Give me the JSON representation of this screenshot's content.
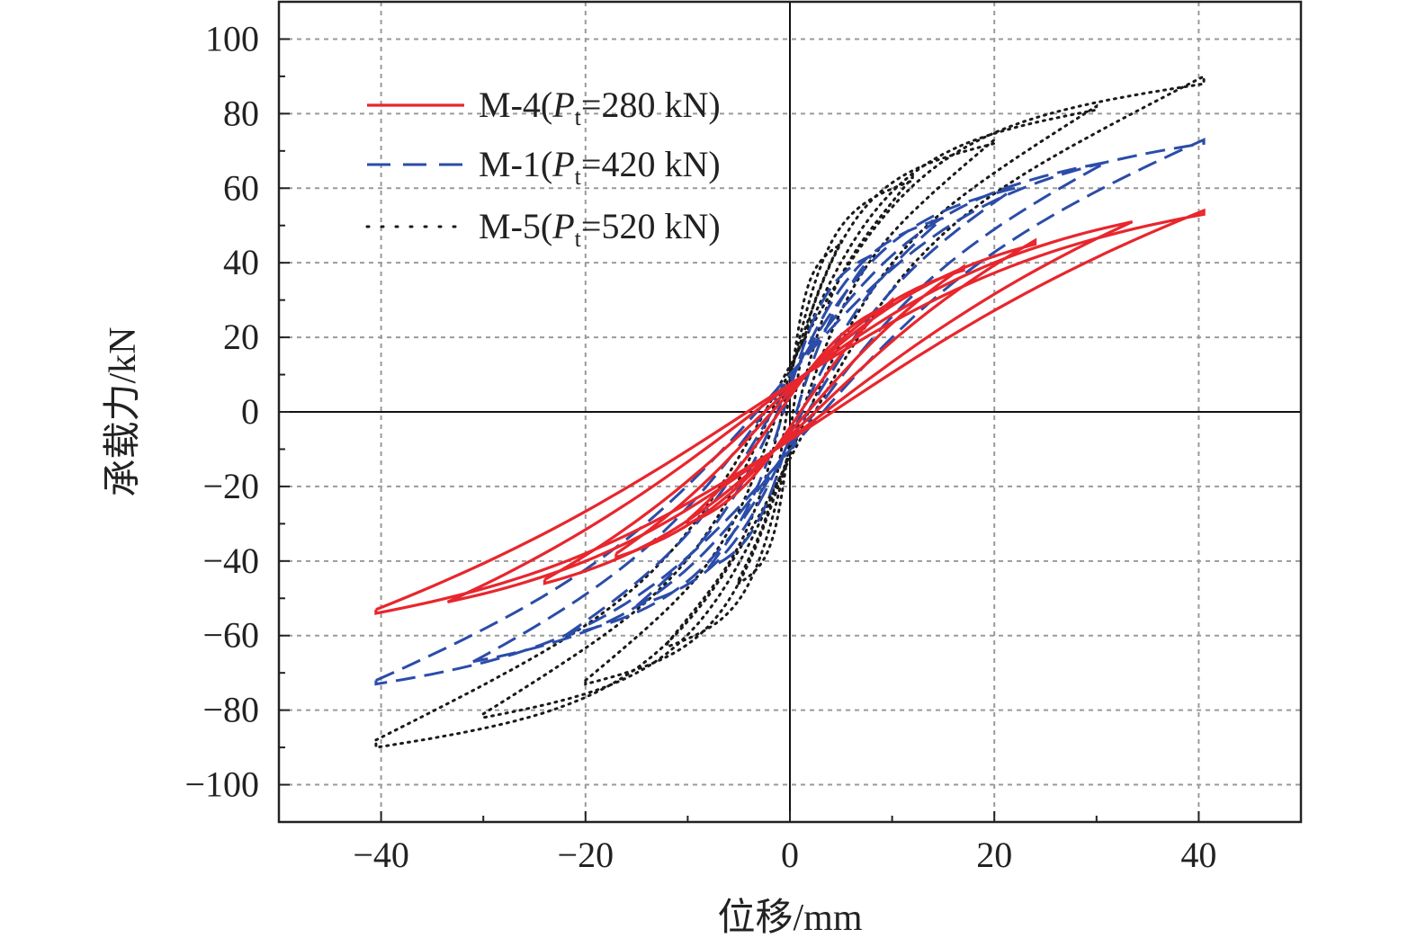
{
  "chart_data": {
    "type": "line",
    "xlabel": "位移/mm",
    "ylabel": "承载力/kN",
    "xlim": [
      -50,
      50
    ],
    "ylim": [
      -110,
      110
    ],
    "xticks": [
      -40,
      -20,
      0,
      20,
      40
    ],
    "xtick_labels": [
      "−40",
      "−20",
      "0",
      "20",
      "40"
    ],
    "yticks": [
      100,
      80,
      60,
      40,
      20,
      0,
      -20,
      -40,
      -60,
      -80,
      -100
    ],
    "ytick_labels": [
      "100",
      "80",
      "60",
      "40",
      "20",
      "0",
      "−20",
      "−40",
      "−60",
      "−80",
      "−100"
    ],
    "grid": true,
    "legend_position": "top-left",
    "series": [
      {
        "name": "M-4(Pt=280 kN)",
        "label_main": "M-4(",
        "label_italic": "P",
        "label_sub": "t",
        "label_rest": "=280 kN)",
        "color": "#e8262d",
        "style": "solid",
        "peak_positive": [
          40.5,
          53
        ],
        "peak_negative": [
          -40.5,
          -54
        ],
        "loops": [
          {
            "amp": 10,
            "pmax": 29,
            "pmin": -30
          },
          {
            "amp": 17,
            "pmax": 38,
            "pmin": -39
          },
          {
            "amp": 24,
            "pmax": 45,
            "pmin": -46
          },
          {
            "amp": 33.5,
            "pmax": 51,
            "pmin": -51
          },
          {
            "amp": 40.5,
            "pmax": 53,
            "pmin": -54
          }
        ]
      },
      {
        "name": "M-1(Pt=420 kN)",
        "label_main": "M-1(",
        "label_italic": "P",
        "label_sub": "t",
        "label_rest": "=420 kN)",
        "color": "#2b4ca8",
        "style": "dashed",
        "peak_positive": [
          40.5,
          72
        ],
        "peak_negative": [
          -40.5,
          -73
        ],
        "loops": [
          {
            "amp": 8,
            "pmax": 42,
            "pmin": -42
          },
          {
            "amp": 15,
            "pmax": 52,
            "pmin": -52
          },
          {
            "amp": 22,
            "pmax": 60,
            "pmin": -60
          },
          {
            "amp": 31,
            "pmax": 67,
            "pmin": -67
          },
          {
            "amp": 40.5,
            "pmax": 72,
            "pmin": -73
          }
        ]
      },
      {
        "name": "M-5(Pt=520 kN)",
        "label_main": "M-5(",
        "label_italic": "P",
        "label_sub": "t",
        "label_rest": "=520 kN)",
        "color": "#1a1a1a",
        "style": "dotted",
        "peak_positive": [
          40.5,
          88
        ],
        "peak_negative": [
          -40.5,
          -90
        ],
        "loops": [
          {
            "amp": 5,
            "pmax": 45,
            "pmin": -46
          },
          {
            "amp": 12,
            "pmax": 62,
            "pmin": -63
          },
          {
            "amp": 20,
            "pmax": 72,
            "pmin": -73
          },
          {
            "amp": 30,
            "pmax": 81,
            "pmin": -82
          },
          {
            "amp": 40.5,
            "pmax": 88,
            "pmin": -90
          }
        ]
      }
    ]
  }
}
